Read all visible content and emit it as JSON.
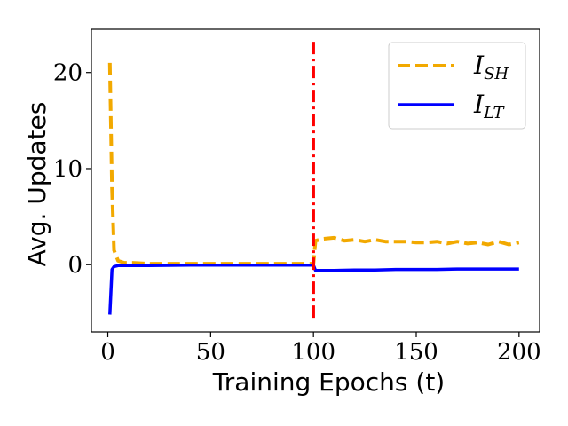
{
  "chart_data": {
    "type": "line",
    "xlabel": "Training Epochs (t)",
    "ylabel": "Avg. Updates",
    "xlim": [
      -8,
      210
    ],
    "ylim": [
      -7,
      24.5
    ],
    "xticks": [
      0,
      50,
      100,
      150,
      200
    ],
    "yticks": [
      0,
      10,
      20
    ],
    "grid": false,
    "legend_position": "top-right",
    "vline": {
      "x": 100,
      "color": "#ff0000",
      "style": "dashdot"
    },
    "series": [
      {
        "name": "I_SH",
        "name_main": "I",
        "name_sub": "SH",
        "color": "#f2a900",
        "style": "dashed",
        "x": [
          1,
          2,
          3,
          5,
          8,
          12,
          20,
          30,
          40,
          50,
          60,
          70,
          80,
          90,
          99,
          100,
          101,
          105,
          110,
          115,
          120,
          125,
          130,
          135,
          140,
          145,
          150,
          155,
          160,
          165,
          170,
          175,
          180,
          185,
          190,
          195,
          200
        ],
        "values": [
          21,
          8,
          1.5,
          0.4,
          0.2,
          0.2,
          0.1,
          0.1,
          0.1,
          0.1,
          0.1,
          0.1,
          0.1,
          0.1,
          0.1,
          0.1,
          2.5,
          2.7,
          2.8,
          2.5,
          2.6,
          2.4,
          2.6,
          2.4,
          2.4,
          2.4,
          2.3,
          2.3,
          2.4,
          2.2,
          2.4,
          2.2,
          2.3,
          2.1,
          2.4,
          2.1,
          2.3
        ]
      },
      {
        "name": "I_LT",
        "name_main": "I",
        "name_sub": "LT",
        "color": "#0000ff",
        "style": "solid",
        "x": [
          1,
          2,
          3,
          5,
          10,
          20,
          40,
          60,
          80,
          99,
          100,
          101,
          110,
          120,
          130,
          140,
          150,
          160,
          170,
          180,
          190,
          200
        ],
        "values": [
          -5.2,
          -0.5,
          -0.2,
          -0.1,
          -0.1,
          -0.1,
          -0.05,
          -0.05,
          -0.05,
          -0.05,
          -0.05,
          -0.6,
          -0.6,
          -0.55,
          -0.55,
          -0.5,
          -0.5,
          -0.5,
          -0.45,
          -0.45,
          -0.45,
          -0.45
        ]
      }
    ]
  }
}
